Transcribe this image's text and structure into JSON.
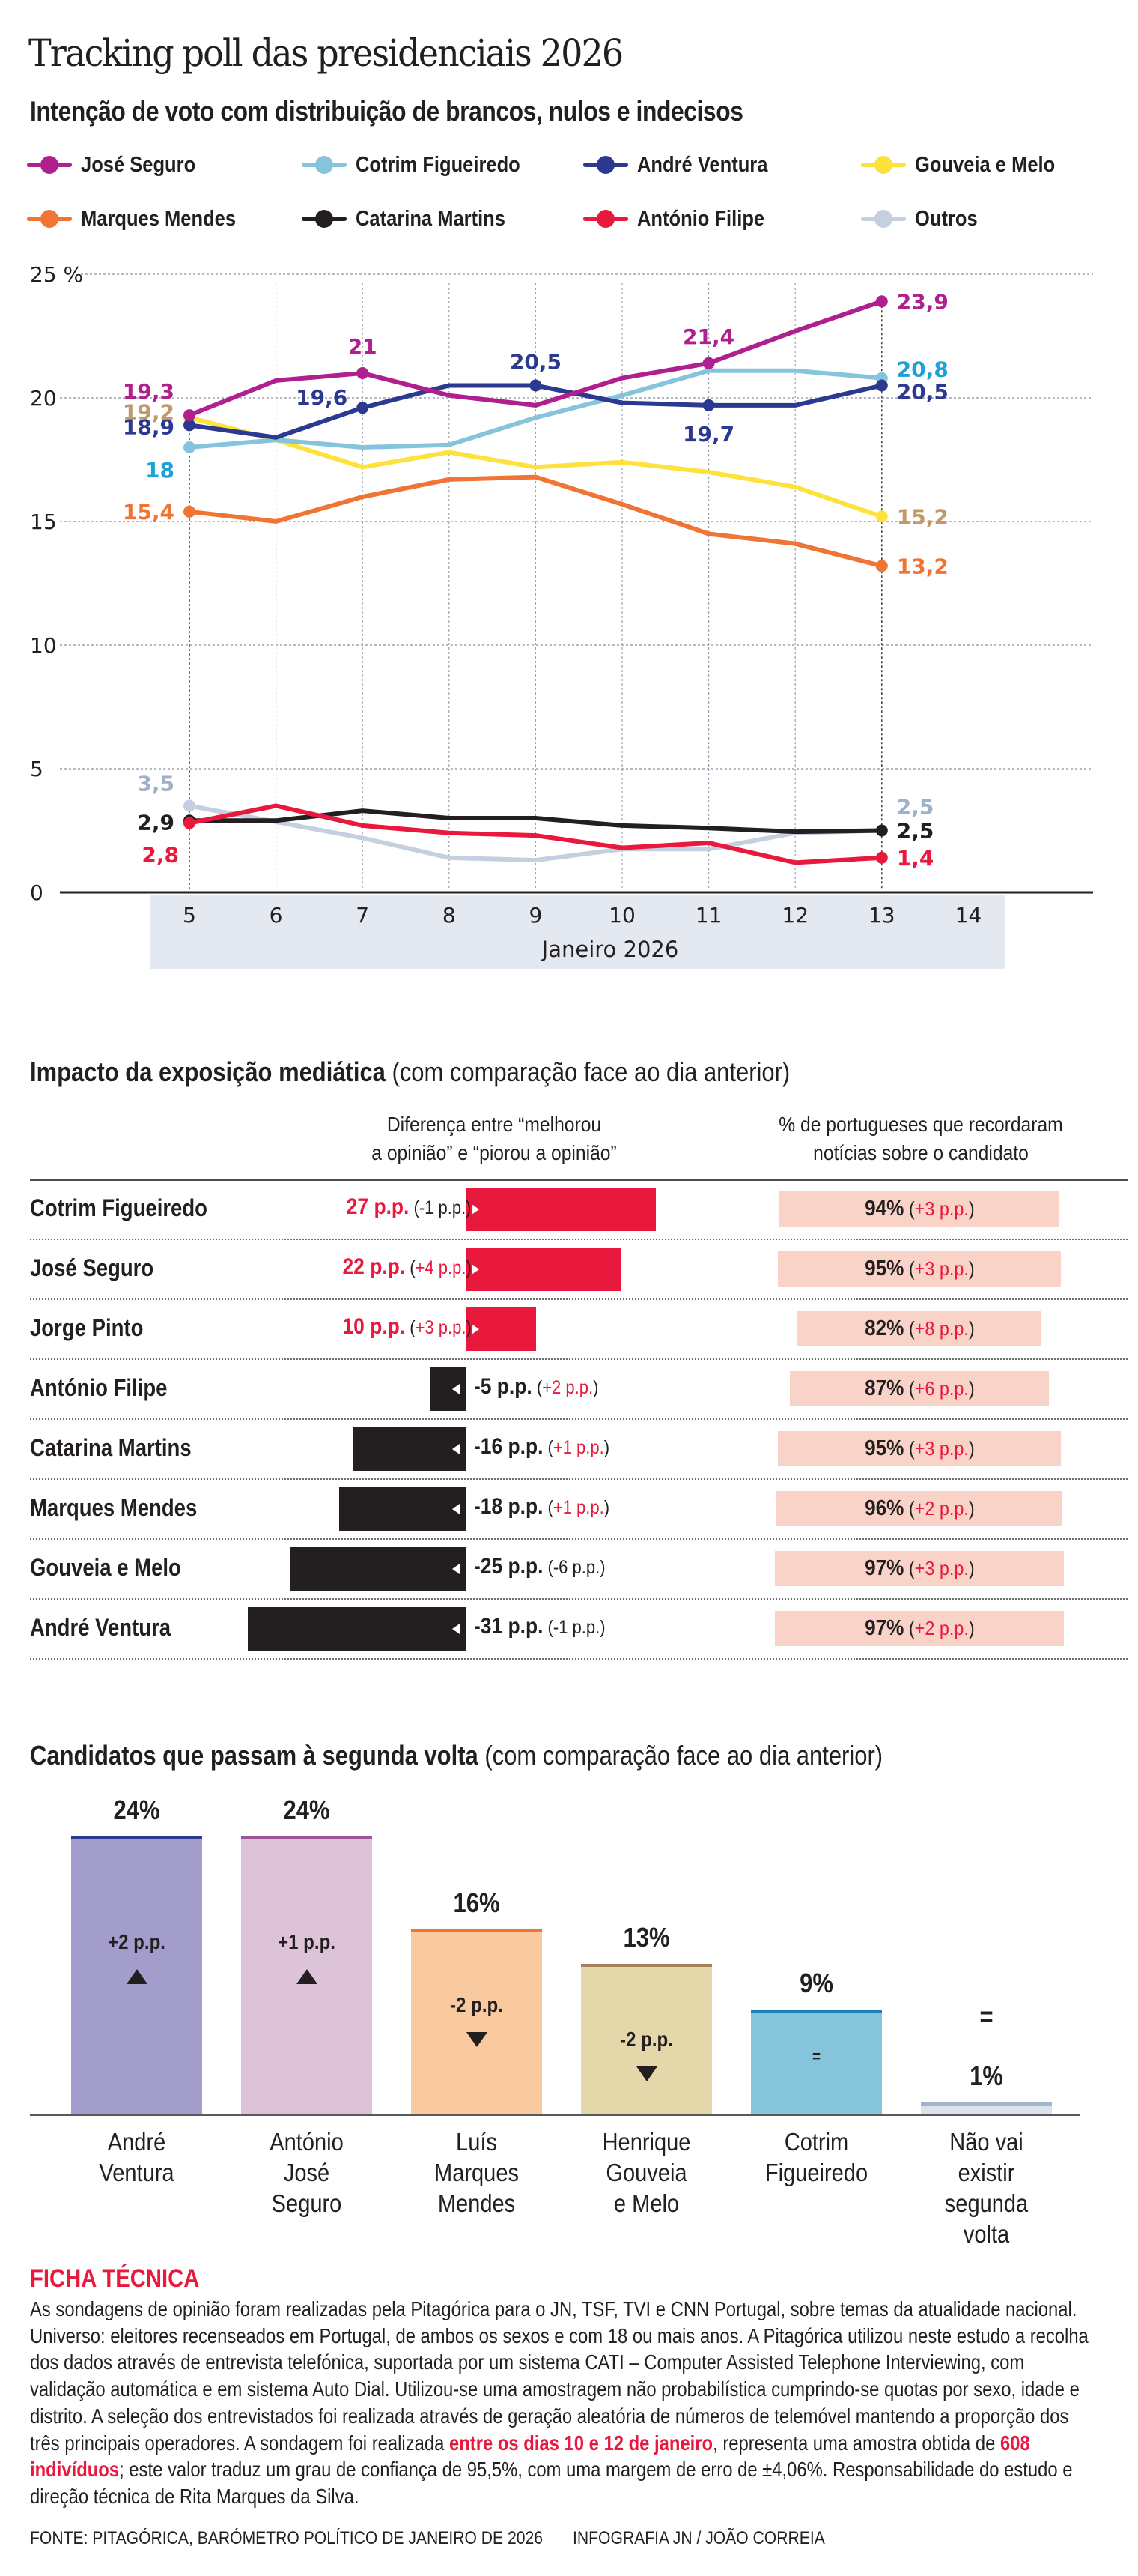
{
  "header": {
    "title": "Tracking poll das presidenciais 2026",
    "subtitle": "Intenção de voto com distribuição de brancos, nulos e indecisos"
  },
  "legend": [
    {
      "name": "José Seguro",
      "color": "#b01f8e"
    },
    {
      "name": "Cotrim Figueiredo",
      "color": "#86c4dc"
    },
    {
      "name": "André Ventura",
      "color": "#2b3990"
    },
    {
      "name": "Gouveia e Melo",
      "color": "#fde23b"
    },
    {
      "name": "Marques Mendes",
      "color": "#f07434"
    },
    {
      "name": "Catarina Martins",
      "color": "#231f20"
    },
    {
      "name": "António Filipe",
      "color": "#e8193c"
    },
    {
      "name": "Outros",
      "color": "#c4cfe0"
    }
  ],
  "chart_data": [
    {
      "type": "line",
      "title": "Intenção de voto com distribuição de brancos, nulos e indecisos",
      "xlabel": "Janeiro 2026",
      "ylabel": "%",
      "x": [
        5,
        6,
        7,
        8,
        9,
        10,
        11,
        12,
        13
      ],
      "x_ticks": [
        "5",
        "6",
        "7",
        "8",
        "9",
        "10",
        "11",
        "12",
        "13",
        "14"
      ],
      "y_ticks": [
        "0",
        "5",
        "10",
        "15",
        "20",
        "25 %"
      ],
      "ylim": [
        0,
        25
      ],
      "grid": true,
      "legend_position": "top",
      "series": [
        {
          "name": "José Seguro",
          "color": "#b01f8e",
          "label_color": "#b01f8e",
          "values": [
            19.3,
            20.7,
            21.0,
            20.1,
            19.7,
            20.8,
            21.4,
            22.7,
            23.9
          ],
          "labels": [
            {
              "day": 5,
              "text": "19,3"
            },
            {
              "day": 7,
              "text": "21"
            },
            {
              "day": 11,
              "text": "21,4"
            },
            {
              "day": 13,
              "text": "23,9"
            }
          ]
        },
        {
          "name": "Cotrim Figueiredo",
          "color": "#86c4dc",
          "label_color": "#1ea0d8",
          "values": [
            18.0,
            18.3,
            18.0,
            18.1,
            19.2,
            20.1,
            21.1,
            21.1,
            20.8
          ],
          "labels": [
            {
              "day": 5,
              "text": "18"
            },
            {
              "day": 13,
              "text": "20,8"
            }
          ]
        },
        {
          "name": "André Ventura",
          "color": "#2b3990",
          "label_color": "#2b3990",
          "values": [
            18.9,
            18.4,
            19.6,
            20.5,
            20.5,
            19.8,
            19.7,
            19.7,
            20.5
          ],
          "labels": [
            {
              "day": 5,
              "text": "18,9"
            },
            {
              "day": 7,
              "text": "19,6"
            },
            {
              "day": 9,
              "text": "20,5"
            },
            {
              "day": 11,
              "text": "19,7"
            },
            {
              "day": 13,
              "text": "20,5"
            }
          ]
        },
        {
          "name": "Gouveia e Melo",
          "color": "#fde23b",
          "label_color": "#c19a6b",
          "values": [
            19.2,
            18.3,
            17.2,
            17.8,
            17.2,
            17.4,
            17.0,
            16.4,
            15.2
          ],
          "labels": [
            {
              "day": 5,
              "text": "19,2"
            },
            {
              "day": 13,
              "text": "15,2"
            }
          ]
        },
        {
          "name": "Marques Mendes",
          "color": "#f07434",
          "label_color": "#f07434",
          "values": [
            15.4,
            15.0,
            16.0,
            16.7,
            16.8,
            15.7,
            14.5,
            14.1,
            13.2
          ],
          "labels": [
            {
              "day": 5,
              "text": "15,4"
            },
            {
              "day": 13,
              "text": "13,2"
            }
          ]
        },
        {
          "name": "Outros",
          "color": "#c4cfe0",
          "label_color": "#9fb0c9",
          "values": [
            3.5,
            2.85,
            2.2,
            1.4,
            1.3,
            1.75,
            1.75,
            2.4,
            2.5
          ],
          "labels": [
            {
              "day": 5,
              "text": "3,5"
            },
            {
              "day": 13,
              "text": "2,5"
            }
          ]
        },
        {
          "name": "Catarina Martins",
          "color": "#231f20",
          "label_color": "#231f20",
          "values": [
            2.9,
            2.9,
            3.3,
            3.0,
            3.0,
            2.7,
            2.6,
            2.45,
            2.5
          ],
          "labels": [
            {
              "day": 5,
              "text": "2,9"
            },
            {
              "day": 13,
              "text": "2,5"
            }
          ]
        },
        {
          "name": "António Filipe",
          "color": "#e8193c",
          "label_color": "#e8193c",
          "values": [
            2.8,
            3.5,
            2.7,
            2.4,
            2.3,
            1.8,
            2.0,
            1.2,
            1.4
          ],
          "labels": [
            {
              "day": 5,
              "text": "2,8"
            },
            {
              "day": 13,
              "text": "1,4"
            }
          ]
        }
      ]
    },
    {
      "type": "bar",
      "orientation": "horizontal-diverging",
      "title": "Impacto da exposição mediática",
      "title_note": "(com comparação face ao dia anterior)",
      "column_headers": [
        "Diferença entre “melhorou\na opinião” e “piorou a opinião”",
        "% de portugueses que recordaram\nnotícias sobre o candidato"
      ],
      "categories": [
        "Cotrim Figueiredo",
        "José Seguro",
        "Jorge Pinto",
        "António Filipe",
        "Catarina Martins",
        "Marques Mendes",
        "Gouveia e Melo",
        "André Ventura"
      ],
      "series": [
        {
          "name": "Diferença (p.p.)",
          "values": [
            27,
            22,
            10,
            -5,
            -16,
            -18,
            -25,
            -31
          ],
          "labels": [
            "27 p.p.",
            "22 p.p.",
            "10 p.p.",
            "-5 p.p.",
            "-16 p.p.",
            "-18 p.p.",
            "-25 p.p.",
            "-31 p.p."
          ],
          "changes": [
            "(-1 p.p.)",
            "(+4 p.p.)",
            "(+3 p.p.)",
            "(+2 p.p.)",
            "(+1 p.p.)",
            "(+1 p.p.)",
            "(-6 p.p.)",
            "(-1 p.p.)"
          ]
        },
        {
          "name": "Recordaram notícias (%)",
          "values": [
            94,
            95,
            82,
            87,
            95,
            96,
            97,
            97
          ],
          "labels": [
            "94%",
            "95%",
            "82%",
            "87%",
            "95%",
            "96%",
            "97%",
            "97%"
          ],
          "changes": [
            "(+3 p.p.)",
            "(+3 p.p.)",
            "(+8 p.p.)",
            "(+6 p.p.)",
            "(+3 p.p.)",
            "(+2 p.p.)",
            "(+3 p.p.)",
            "(+2 p.p.)"
          ]
        }
      ],
      "colors": {
        "positive": "#e8193c",
        "negative": "#231f20",
        "recall": "#f9d3c8"
      }
    },
    {
      "type": "bar",
      "title": "Candidatos que passam à segunda volta",
      "title_note": "(com comparação face ao dia anterior)",
      "categories": [
        "André\nVentura",
        "António\nJosé\nSeguro",
        "Luís\nMarques\nMendes",
        "Henrique\nGouveia\ne Melo",
        "Cotrim\nFigueiredo",
        "Não vai\nexistir\nsegunda\nvolta"
      ],
      "values": [
        24,
        24,
        16,
        13,
        9,
        1
      ],
      "labels": [
        "24%",
        "24%",
        "16%",
        "13%",
        "9%",
        "1%"
      ],
      "changes": [
        "+2 p.p.",
        "+1 p.p.",
        "-2 p.p.",
        "-2 p.p.",
        "=",
        "="
      ],
      "directions": [
        "up",
        "up",
        "down",
        "down",
        "equal",
        "equal"
      ],
      "fill_colors": [
        "#a29dcb",
        "#dcc3d8",
        "#f9c99f",
        "#e4d8aa",
        "#86c4dc",
        "#dce3ee"
      ],
      "cap_colors": [
        "#2b3990",
        "#9c5598",
        "#f07434",
        "#a6825a",
        "#1a82b0",
        "#a3b3ce"
      ],
      "ylim": [
        0,
        24
      ]
    }
  ],
  "impact_rows": [
    {
      "name": "Cotrim Figueiredo",
      "diff": "27 p.p.",
      "diff_change": "(-1 p.p.)",
      "diff_change_sign": "neg",
      "recall": "94%",
      "recall_change": "(+3 p.p.)"
    },
    {
      "name": "José Seguro",
      "diff": "22 p.p.",
      "diff_change": "(+4 p.p.)",
      "diff_change_sign": "pos",
      "recall": "95%",
      "recall_change": "(+3 p.p.)"
    },
    {
      "name": "Jorge Pinto",
      "diff": "10 p.p.",
      "diff_change": "(+3 p.p.)",
      "diff_change_sign": "pos",
      "recall": "82%",
      "recall_change": "(+8 p.p.)"
    },
    {
      "name": "António Filipe",
      "diff": "-5 p.p.",
      "diff_change": "(+2 p.p.)",
      "diff_change_sign": "pos",
      "recall": "87%",
      "recall_change": "(+6 p.p.)"
    },
    {
      "name": "Catarina Martins",
      "diff": "-16 p.p.",
      "diff_change": "(+1 p.p.)",
      "diff_change_sign": "pos",
      "recall": "95%",
      "recall_change": "(+3 p.p.)"
    },
    {
      "name": "Marques Mendes",
      "diff": "-18 p.p.",
      "diff_change": "(+1 p.p.)",
      "diff_change_sign": "pos",
      "recall": "96%",
      "recall_change": "(+2 p.p.)"
    },
    {
      "name": "Gouveia e Melo",
      "diff": "-25 p.p.",
      "diff_change": "(-6 p.p.)",
      "diff_change_sign": "neg",
      "recall": "97%",
      "recall_change": "(+3 p.p.)"
    },
    {
      "name": "André Ventura",
      "diff": "-31 p.p.",
      "diff_change": "(-1 p.p.)",
      "diff_change_sign": "neg",
      "recall": "97%",
      "recall_change": "(+2 p.p.)"
    }
  ],
  "sections": {
    "impact_title": "Impacto da exposição mediática",
    "impact_note": "(com comparação face ao dia anterior)",
    "impact_header_1_line1": "Diferença entre “melhorou",
    "impact_header_1_line2": "a opinião” e “piorou a opinião”",
    "impact_header_2_line1": "% de portugueses que recordaram",
    "impact_header_2_line2": "notícias sobre o candidato",
    "round2_title": "Candidatos que passam à segunda volta",
    "round2_note": "(com comparação face ao dia anterior)"
  },
  "ficha": {
    "title": "FICHA TÉCNICA",
    "text_part1": "As sondagens de opinião foram realizadas pela Pitagórica para o JN, TSF, TVI e CNN Portugal, sobre temas da atualidade nacional. Universo: eleitores recenseados em Portugal, de ambos os sexos e com 18 ou mais anos. A Pitagórica utilizou neste estudo a recolha dos dados através de entrevista telefónica, suportada por um sistema CATI – Computer Assisted Telephone Interviewing, com validação automática e em sistema Auto Dial. Utilizou-se uma amostragem não probabilística cumprindo-se quotas por sexo, idade e distrito. A seleção dos entrevistados foi realizada através de geração aleatória de números de telemóvel mantendo a proporção dos três principais operadores. A sondagem foi realizada ",
    "highlight_dates": "entre os dias 10 e 12 de janeiro",
    "text_part2": ", representa uma amostra obtida de ",
    "highlight_sample": "608 indivíduos",
    "text_part3": "; este valor traduz um grau de confiança de 95,5%, com uma margem de erro de ±4,06%. Responsabilidade do estudo e direção técnica de Rita Marques da Silva."
  },
  "footer": {
    "source": "FONTE: PITAGÓRICA, BARÓMETRO POLÍTICO DE JANEIRO DE 2026",
    "credit": "INFOGRAFIA JN / JOÃO CORREIA"
  }
}
